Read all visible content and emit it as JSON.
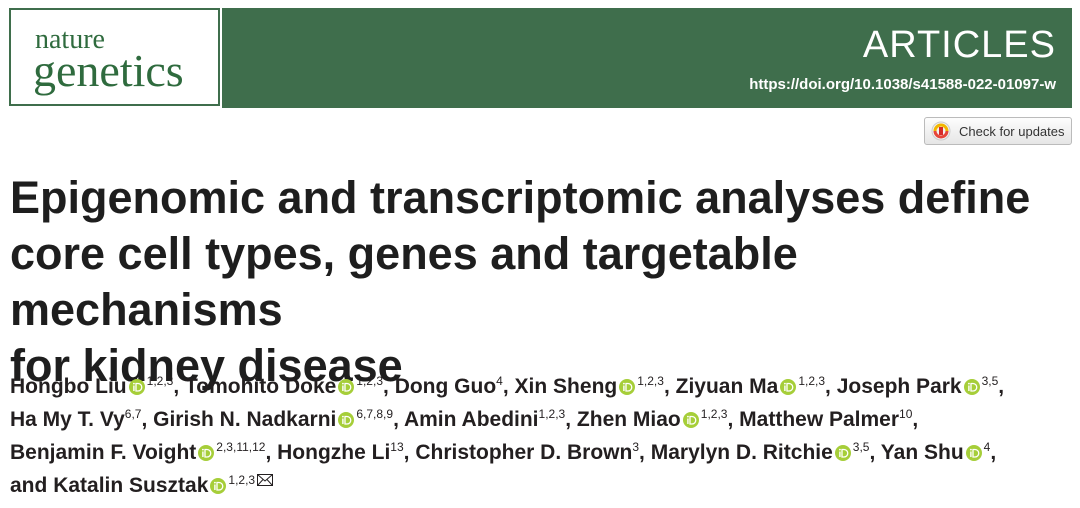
{
  "journal": {
    "line1": "nature",
    "line2": "genetics"
  },
  "section": "ARTICLES",
  "doi": "https://doi.org/10.1038/s41588-022-01097-w",
  "update_button": "Check for updates",
  "title_lines": [
    "Epigenomic and transcriptomic analyses define",
    "core cell types, genes and targetable mechanisms",
    "for kidney disease"
  ],
  "separator": ",",
  "conjunction": "and",
  "author_lines": [
    [
      {
        "name": "Hongbo Liu",
        "orcid": true,
        "sup": "1,2,3"
      },
      {
        "name": "Tomohito Doke",
        "orcid": true,
        "sup": "1,2,3"
      },
      {
        "name": "Dong Guo",
        "orcid": false,
        "sup": "4"
      },
      {
        "name": "Xin Sheng",
        "orcid": true,
        "sup": "1,2,3"
      },
      {
        "name": "Ziyuan Ma",
        "orcid": true,
        "sup": "1,2,3"
      },
      {
        "name": "Joseph Park",
        "orcid": true,
        "sup": "3,5"
      }
    ],
    [
      {
        "name": "Ha My T. Vy",
        "orcid": false,
        "sup": "6,7"
      },
      {
        "name": "Girish N. Nadkarni",
        "orcid": true,
        "sup": "6,7,8,9"
      },
      {
        "name": "Amin Abedini",
        "orcid": false,
        "sup": "1,2,3"
      },
      {
        "name": "Zhen Miao",
        "orcid": true,
        "sup": "1,2,3"
      },
      {
        "name": "Matthew Palmer",
        "orcid": false,
        "sup": "10"
      }
    ],
    [
      {
        "name": "Benjamin F. Voight",
        "orcid": true,
        "sup": "2,3,11,12"
      },
      {
        "name": "Hongzhe Li",
        "orcid": false,
        "sup": "13"
      },
      {
        "name": "Christopher D. Brown",
        "orcid": false,
        "sup": "3"
      },
      {
        "name": "Marylyn D. Ritchie",
        "orcid": true,
        "sup": "3,5"
      },
      {
        "name": "Yan Shu",
        "orcid": true,
        "sup": "4"
      }
    ],
    [
      {
        "name": "Katalin Susztak",
        "orcid": true,
        "sup": "1,2,3",
        "corresponding": true
      }
    ]
  ]
}
